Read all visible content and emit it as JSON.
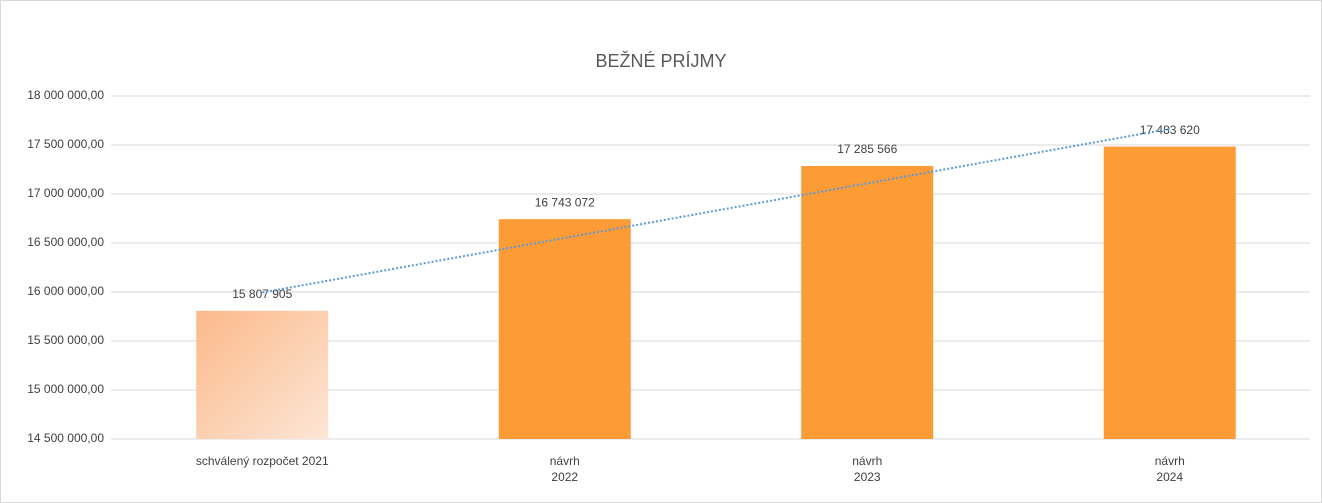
{
  "chart_data": {
    "type": "bar",
    "title": "BEŽNÉ PRÍJMY",
    "categories": [
      "schválený rozpočet 2021",
      "návrh\n2022",
      "návrh\n2023",
      "návrh\n2024"
    ],
    "values": [
      15807905,
      16743072,
      17285566,
      17483620
    ],
    "value_labels": [
      "15 807 905",
      "16 743 072",
      "17 285 566",
      "17 483 620"
    ],
    "colors": [
      [
        "#fbb98a",
        "#fde6d6"
      ],
      "#fd9b37",
      "#fd9b37",
      "#fd9b37"
    ],
    "ylim": [
      14500000,
      18000000
    ],
    "yticks": [
      {
        "value": 14500000,
        "label": "14 500 000,00"
      },
      {
        "value": 15000000,
        "label": "15 000 000,00"
      },
      {
        "value": 15500000,
        "label": "15 500 000,00"
      },
      {
        "value": 16000000,
        "label": "16 000 000,00"
      },
      {
        "value": 16500000,
        "label": "16 500 000,00"
      },
      {
        "value": 17000000,
        "label": "17 000 000,00"
      },
      {
        "value": 17500000,
        "label": "17 500 000,00"
      },
      {
        "value": 18000000,
        "label": "18 000 000,00"
      }
    ],
    "grid": true,
    "trendline": {
      "type": "linear",
      "color": "#5b9bd5"
    }
  }
}
